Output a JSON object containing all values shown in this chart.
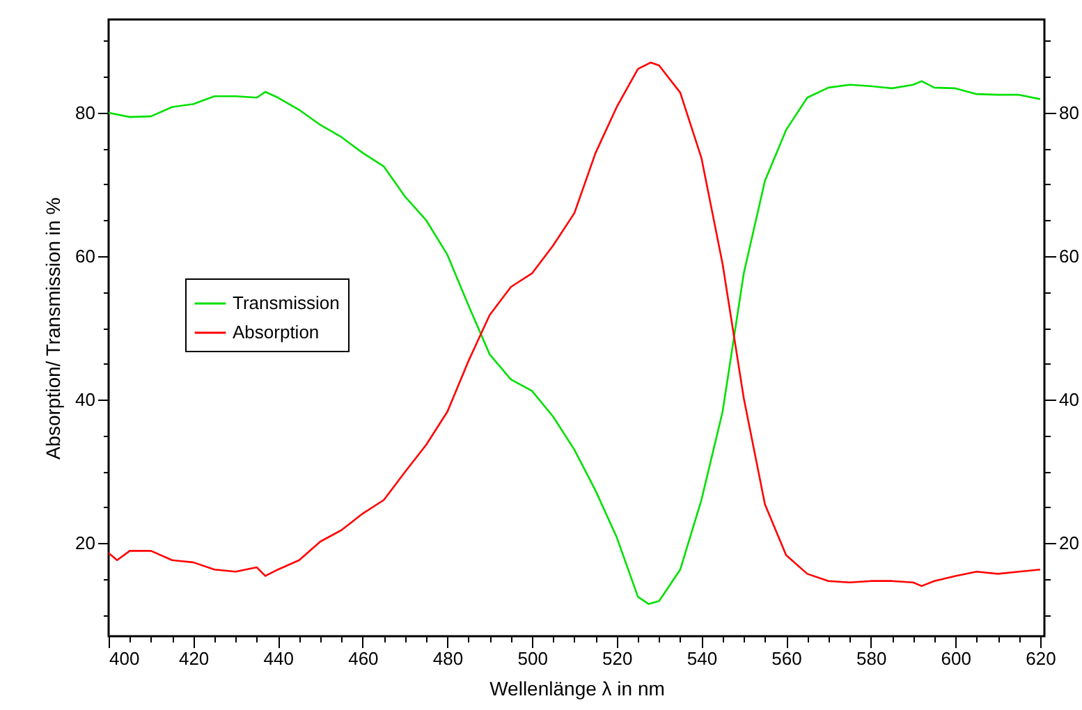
{
  "chart_data": {
    "type": "line",
    "xlabel": "Wellenlänge λ in nm",
    "ylabel": "Absorption/ Transmission in %",
    "xlim": [
      400,
      621
    ],
    "xticks": [
      400,
      {
        "value": 405,
        "label": null
      },
      {
        "value": 410,
        "label": null
      },
      {
        "value": 415,
        "label": null
      },
      420,
      {
        "value": 425,
        "label": null
      },
      {
        "value": 430,
        "label": null
      },
      {
        "value": 435,
        "label": null
      },
      440,
      {
        "value": 445,
        "label": null
      },
      {
        "value": 450,
        "label": null
      },
      {
        "value": 455,
        "label": null
      },
      460,
      {
        "value": 465,
        "label": null
      },
      {
        "value": 470,
        "label": null
      },
      {
        "value": 475,
        "label": null
      },
      480,
      {
        "value": 485,
        "label": null
      },
      {
        "value": 490,
        "label": null
      },
      {
        "value": 495,
        "label": null
      },
      500,
      {
        "value": 505,
        "label": null
      },
      {
        "value": 510,
        "label": null
      },
      {
        "value": 515,
        "label": null
      },
      520,
      {
        "value": 525,
        "label": null
      },
      {
        "value": 530,
        "label": null
      },
      {
        "value": 535,
        "label": null
      },
      540,
      {
        "value": 545,
        "label": null
      },
      {
        "value": 550,
        "label": null
      },
      {
        "value": 555,
        "label": null
      },
      560,
      {
        "value": 565,
        "label": null
      },
      {
        "value": 570,
        "label": null
      },
      {
        "value": 575,
        "label": null
      },
      580,
      {
        "value": 585,
        "label": null
      },
      {
        "value": 590,
        "label": null
      },
      {
        "value": 595,
        "label": null
      },
      600,
      {
        "value": 605,
        "label": null
      },
      {
        "value": 610,
        "label": null
      },
      {
        "value": 615,
        "label": null
      },
      620
    ],
    "ylim": [
      7,
      93
    ],
    "yticks": [
      {
        "value": 10,
        "label": null
      },
      {
        "value": 15,
        "label": null
      },
      20,
      {
        "value": 25,
        "label": null
      },
      {
        "value": 30,
        "label": null
      },
      {
        "value": 35,
        "label": null
      },
      40,
      {
        "value": 45,
        "label": null
      },
      {
        "value": 50,
        "label": null
      },
      {
        "value": 55,
        "label": null
      },
      60,
      {
        "value": 65,
        "label": null
      },
      {
        "value": 70,
        "label": null
      },
      {
        "value": 75,
        "label": null
      },
      80,
      {
        "value": 85,
        "label": null
      },
      {
        "value": 90,
        "label": null
      }
    ],
    "y2lim": [
      7,
      93
    ],
    "y2ticks": [
      {
        "value": 10,
        "label": null
      },
      {
        "value": 15,
        "label": null
      },
      20,
      {
        "value": 25,
        "label": null
      },
      {
        "value": 30,
        "label": null
      },
      {
        "value": 35,
        "label": null
      },
      40,
      {
        "value": 45,
        "label": null
      },
      {
        "value": 50,
        "label": null
      },
      {
        "value": 55,
        "label": null
      },
      60,
      {
        "value": 65,
        "label": null
      },
      {
        "value": 70,
        "label": null
      },
      {
        "value": 75,
        "label": null
      },
      80,
      {
        "value": 85,
        "label": null
      },
      {
        "value": 90,
        "label": null
      }
    ],
    "legend": "left",
    "grid": false,
    "marker": "none",
    "line_style": "solid",
    "series": [
      {
        "name": "Transmission",
        "color": "#00e000",
        "x": [
          400,
          405,
          410,
          415,
          420,
          425,
          430,
          435,
          437,
          440,
          445,
          450,
          455,
          460,
          465,
          470,
          475,
          480,
          485,
          490,
          495,
          500,
          505,
          510,
          515,
          520,
          525,
          527.5,
          530,
          535,
          540,
          545,
          550,
          555,
          560,
          565,
          570,
          575,
          580,
          585,
          590,
          592,
          595,
          600,
          605,
          610,
          615,
          620
        ],
        "values": [
          80,
          79.4,
          79.5,
          80.8,
          81.2,
          82.3,
          82.3,
          82.1,
          82.9,
          82.1,
          80.4,
          78.3,
          76.6,
          74.4,
          72.5,
          68.3,
          65,
          60.2,
          53.1,
          46.3,
          42.8,
          41.2,
          37.6,
          33,
          27.3,
          20.8,
          12.5,
          11.5,
          11.9,
          16.3,
          26,
          38.3,
          57.6,
          70.5,
          77.6,
          82.1,
          83.5,
          83.9,
          83.7,
          83.4,
          83.9,
          84.4,
          83.5,
          83.4,
          82.6,
          82.5,
          82.5,
          81.9
        ]
      },
      {
        "name": "Absorption",
        "color": "#ff0000",
        "x": [
          400,
          402,
          405,
          410,
          415,
          420,
          425,
          430,
          435,
          437,
          440,
          445,
          450,
          455,
          460,
          465,
          470,
          475,
          480,
          485,
          490,
          495,
          500,
          505,
          510,
          515,
          520,
          525,
          528,
          530,
          535,
          540,
          545,
          550,
          555,
          560,
          565,
          570,
          575,
          580,
          585,
          590,
          592,
          595,
          600,
          605,
          610,
          615,
          620
        ],
        "values": [
          18.6,
          17.6,
          18.9,
          18.9,
          17.6,
          17.3,
          16.3,
          16,
          16.6,
          15.4,
          16.3,
          17.6,
          20.2,
          21.8,
          24.1,
          26,
          29.9,
          33.7,
          38.3,
          45.4,
          51.8,
          55.7,
          57.6,
          61.5,
          66,
          74.4,
          80.8,
          86.1,
          87,
          86.6,
          82.8,
          73.7,
          58.9,
          40.2,
          25.4,
          18.3,
          15.7,
          14.7,
          14.5,
          14.7,
          14.7,
          14.5,
          14,
          14.7,
          15.4,
          16,
          15.7,
          16,
          16.3
        ]
      }
    ]
  }
}
